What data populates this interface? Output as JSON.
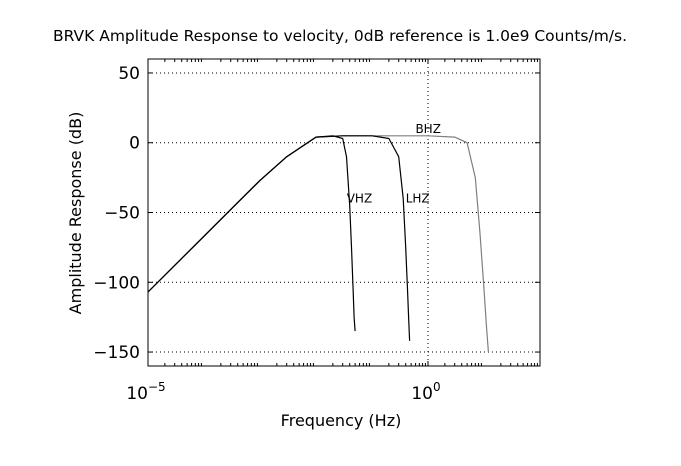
{
  "chart_data": {
    "type": "line",
    "title": "BRVK Amplitude Response to velocity, 0dB reference is 1.0e9 Counts/m/s.",
    "xlabel": "Frequency (Hz)",
    "ylabel": "Amplitude Response (dB)",
    "x_scale": "log",
    "xlim": [
      1e-05,
      100
    ],
    "ylim": [
      -160,
      60
    ],
    "grid": true,
    "x_ticks": [
      {
        "base": "10",
        "exp": "−5",
        "value": 1e-05
      },
      {
        "base": "10",
        "exp": "0",
        "value": 1
      }
    ],
    "y_ticks": [
      {
        "label": "50",
        "value": 50
      },
      {
        "label": "0",
        "value": 0
      },
      {
        "label": "−50",
        "value": -50
      },
      {
        "label": "−100",
        "value": -100
      },
      {
        "label": "−150",
        "value": -150
      }
    ],
    "series": [
      {
        "name": "VHZ",
        "color": "#000000",
        "x": [
          1e-05,
          0.0001,
          0.0005,
          0.001,
          0.003,
          0.01,
          0.02,
          0.03,
          0.035,
          0.04,
          0.043,
          0.046,
          0.048,
          0.05
        ],
        "y": [
          -107,
          -67,
          -39,
          -27,
          -10,
          4,
          5,
          3,
          -10,
          -45,
          -75,
          -105,
          -125,
          -135
        ]
      },
      {
        "name": "LHZ",
        "color": "#000000",
        "x": [
          1e-05,
          0.0001,
          0.0005,
          0.001,
          0.003,
          0.01,
          0.03,
          0.1,
          0.2,
          0.3,
          0.36,
          0.4,
          0.43,
          0.45,
          0.47
        ],
        "y": [
          -107,
          -67,
          -39,
          -27,
          -10,
          4,
          5,
          5,
          3,
          -10,
          -40,
          -75,
          -105,
          -125,
          -142
        ]
      },
      {
        "name": "BHZ",
        "color": "#7f7f7f",
        "x": [
          1e-05,
          0.0001,
          0.0005,
          0.001,
          0.003,
          0.01,
          0.03,
          0.1,
          0.5,
          1,
          3,
          5,
          7,
          8.5,
          10,
          11,
          12
        ],
        "y": [
          -107,
          -67,
          -39,
          -27,
          -10,
          4,
          5,
          5,
          5,
          5,
          4,
          0,
          -25,
          -65,
          -105,
          -130,
          -150
        ]
      }
    ],
    "annotations": [
      {
        "text": "VHZ",
        "series": "VHZ"
      },
      {
        "text": "LHZ",
        "series": "LHZ"
      },
      {
        "text": "BHZ",
        "series": "BHZ"
      }
    ]
  }
}
